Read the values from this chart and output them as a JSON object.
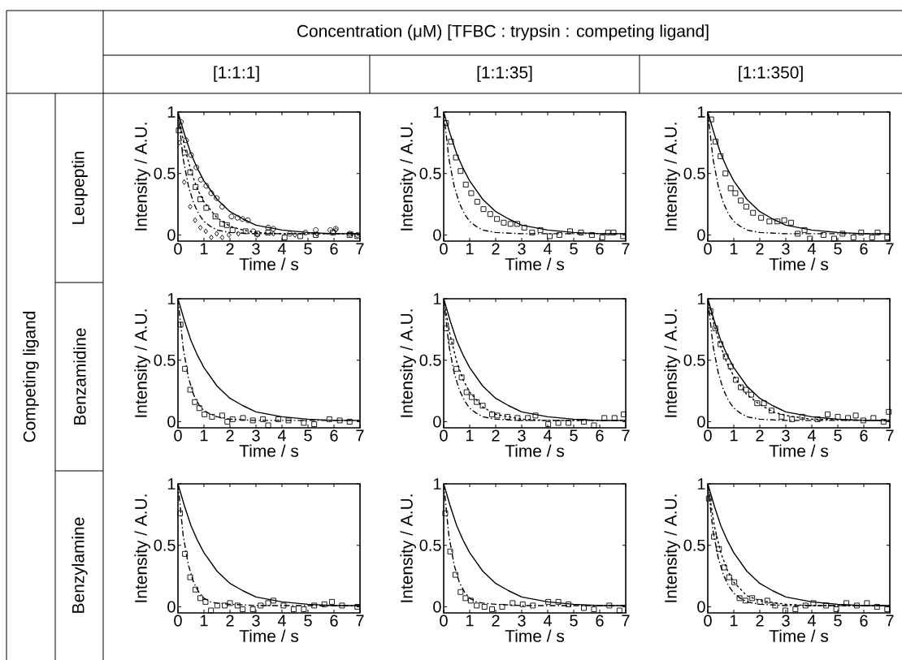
{
  "chart_data": [
    {
      "type": "other",
      "title": "Concentration (μM) [TFBC : trypsin : competing ligand]",
      "categories": [
        "[1:1:1]",
        "[1:1:35]",
        "[1:1:350]"
      ],
      "ylabel": "Competing ligand",
      "y_categories": [
        "Leupeptin",
        "Benzamidine",
        "Benzylamine"
      ]
    },
    {
      "type": "scatter",
      "xlabel": "Time / s",
      "ylabel": "Intensity / A.U.",
      "xlim": [
        0,
        7
      ],
      "ylim": [
        -0.05,
        1
      ],
      "xticks": [
        0,
        1,
        2,
        3,
        4,
        5,
        6,
        7
      ],
      "yticks": [
        0,
        0.5,
        1
      ],
      "series": [
        {
          "type": "line",
          "line_style": "solid",
          "color": "#000000",
          "x": [
            0,
            0.25,
            0.5,
            0.75,
            1,
            1.5,
            2,
            2.5,
            3,
            3.5,
            4,
            5,
            6,
            7
          ],
          "values": [
            1,
            0.82,
            0.66,
            0.54,
            0.44,
            0.29,
            0.19,
            0.13,
            0.08,
            0.06,
            0.04,
            0.02,
            0.01,
            0.01
          ]
        },
        {
          "type": "line",
          "line_style": "dashed",
          "color": "#000000",
          "x": [
            0,
            0.25,
            0.5,
            0.75,
            1,
            1.5,
            2,
            2.5,
            3,
            4,
            6.9
          ],
          "values": [
            1,
            0.72,
            0.52,
            0.37,
            0.27,
            0.14,
            0.07,
            0.04,
            0.02,
            0.01,
            0.01
          ]
        },
        {
          "type": "line",
          "line_style": "dashdot",
          "color": "#000000",
          "x": [
            0,
            0.2,
            0.4,
            0.6,
            0.8,
            1,
            1.25,
            1.5,
            2,
            3,
            7
          ],
          "values": [
            1,
            0.62,
            0.4,
            0.26,
            0.17,
            0.11,
            0.07,
            0.04,
            0.02,
            0.01,
            0.01
          ]
        },
        {
          "type": "scatter",
          "marker": "circle",
          "color": "#000000",
          "x": [
            0.11,
            0.31,
            0.5,
            0.71,
            0.88,
            1.09,
            1.28,
            1.49,
            1.7,
            2.06,
            2.29,
            2.48,
            2.69,
            2.9,
            3.47,
            3.67,
            4.3,
            4.9,
            5.3,
            5.86,
            6.07,
            6.6,
            6.9
          ],
          "values": [
            0.92,
            0.77,
            0.65,
            0.55,
            0.45,
            0.4,
            0.34,
            0.3,
            0.23,
            0.15,
            0.14,
            0.13,
            0.12,
            0.03,
            0.06,
            0.05,
            0.01,
            0.02,
            0.04,
            0.04,
            0.05,
            0.01,
            0
          ]
        },
        {
          "type": "scatter",
          "marker": "square",
          "color": "#000000",
          "x": [
            0.03,
            0.26,
            0.47,
            0.68,
            0.86,
            1.09,
            1.44,
            1.7,
            1.88,
            2.1,
            2.6,
            3.05,
            3.47,
            4.1,
            4.7,
            5.3,
            5.96,
            6.6,
            6.9
          ],
          "values": [
            0.85,
            0.67,
            0.51,
            0.39,
            0.29,
            0.22,
            0.15,
            0.09,
            0.08,
            0.04,
            0.03,
            0.01,
            0.02,
            -0.02,
            -0.01,
            0,
            0.02,
            0,
            -0.01
          ]
        },
        {
          "type": "scatter",
          "marker": "diamond",
          "color": "#000000",
          "x": [
            0.05,
            0.24,
            0.47,
            0.66,
            0.86,
            1.07,
            1.28,
            1.49,
            1.7,
            1.96,
            2.32,
            3.05,
            3.67,
            4.5,
            5.34,
            6.07,
            6.7
          ],
          "values": [
            0.75,
            0.43,
            0.23,
            0.12,
            0.06,
            0.03,
            -0.02,
            0.01,
            -0.02,
            0,
            0.01,
            0,
            0.01,
            0,
            0.01,
            0.04,
            0.01
          ]
        }
      ]
    },
    {
      "type": "scatter",
      "xlabel": "Time / s",
      "ylabel": "Intensity / A.U.",
      "xlim": [
        0,
        7
      ],
      "ylim": [
        -0.05,
        1
      ],
      "xticks": [
        0,
        1,
        2,
        3,
        4,
        5,
        6,
        7
      ],
      "yticks": [
        0,
        0.5,
        1
      ],
      "series": [
        {
          "type": "line",
          "line_style": "solid",
          "color": "#000000",
          "x": [
            0,
            0.25,
            0.5,
            0.75,
            1,
            1.5,
            2,
            2.5,
            3,
            3.5,
            4,
            5,
            6,
            7
          ],
          "values": [
            1,
            0.82,
            0.66,
            0.54,
            0.44,
            0.29,
            0.19,
            0.13,
            0.08,
            0.06,
            0.04,
            0.02,
            0.01,
            0.01
          ]
        },
        {
          "type": "line",
          "line_style": "dashdot",
          "color": "#000000",
          "x": [
            0,
            0.2,
            0.4,
            0.6,
            0.8,
            1,
            1.25,
            1.5,
            2,
            3,
            7
          ],
          "values": [
            1,
            0.62,
            0.4,
            0.26,
            0.17,
            0.11,
            0.07,
            0.04,
            0.02,
            0.01,
            0.01
          ]
        },
        {
          "type": "scatter",
          "marker": "square",
          "color": "#000000",
          "x": [
            0.09,
            0.28,
            0.47,
            0.65,
            0.85,
            1.06,
            1.29,
            1.53,
            1.79,
            2.05,
            2.31,
            2.57,
            2.83,
            3.1,
            3.4,
            3.72,
            4.08,
            4.45,
            4.86,
            5.28,
            5.7,
            6.1,
            6.32,
            6.53,
            6.9
          ],
          "values": [
            0.91,
            0.76,
            0.63,
            0.52,
            0.41,
            0.34,
            0.27,
            0.21,
            0.17,
            0.13,
            0.1,
            0.09,
            0.09,
            0.06,
            0.02,
            0.04,
            -0.01,
            0,
            0.03,
            0.02,
            0,
            -0.02,
            0.02,
            0.02,
            -0.01
          ]
        }
      ]
    },
    {
      "type": "scatter",
      "xlabel": "Time / s",
      "ylabel": "Intensity / A.U.",
      "xlim": [
        0,
        7
      ],
      "ylim": [
        -0.05,
        1
      ],
      "xticks": [
        0,
        1,
        2,
        3,
        4,
        5,
        6,
        7
      ],
      "yticks": [
        0,
        0.5,
        1
      ],
      "series": [
        {
          "type": "line",
          "line_style": "solid",
          "color": "#000000",
          "x": [
            0,
            0.25,
            0.5,
            0.75,
            1,
            1.5,
            2,
            2.5,
            3,
            3.5,
            4,
            5,
            6,
            7
          ],
          "values": [
            1,
            0.82,
            0.66,
            0.54,
            0.44,
            0.29,
            0.19,
            0.13,
            0.08,
            0.06,
            0.04,
            0.02,
            0.01,
            0.01
          ]
        },
        {
          "type": "line",
          "line_style": "dashdot",
          "color": "#000000",
          "x": [
            0,
            0.2,
            0.4,
            0.6,
            0.8,
            1,
            1.25,
            1.5,
            2,
            3,
            7
          ],
          "values": [
            1,
            0.62,
            0.4,
            0.26,
            0.17,
            0.11,
            0.07,
            0.04,
            0.02,
            0.01,
            0.01
          ]
        },
        {
          "type": "scatter",
          "marker": "square",
          "color": "#000000",
          "x": [
            0.13,
            0.3,
            0.49,
            0.68,
            0.88,
            1.06,
            1.27,
            1.48,
            1.74,
            2.05,
            2.37,
            2.68,
            2.94,
            3.2,
            3.46,
            3.72,
            3.93,
            4.45,
            4.86,
            5.18,
            5.6,
            5.9,
            6.32,
            6.53,
            6.9
          ],
          "values": [
            0.94,
            0.76,
            0.64,
            0.5,
            0.38,
            0.34,
            0.28,
            0.23,
            0.18,
            0.14,
            0.11,
            0.11,
            0.12,
            0.1,
            0.01,
            0.04,
            -0.03,
            0,
            -0.03,
            0.01,
            -0.02,
            0.02,
            -0.02,
            0.02,
            -0.02
          ]
        }
      ]
    },
    {
      "type": "scatter",
      "xlabel": "Time / s",
      "ylabel": "Intensity / A.U.",
      "xlim": [
        0,
        7
      ],
      "ylim": [
        -0.05,
        1
      ],
      "xticks": [
        0,
        1,
        2,
        3,
        4,
        5,
        6,
        7
      ],
      "yticks": [
        0,
        0.5,
        1
      ],
      "series": [
        {
          "type": "line",
          "line_style": "solid",
          "color": "#000000",
          "x": [
            0,
            0.25,
            0.5,
            0.75,
            1,
            1.5,
            2,
            2.5,
            3,
            3.5,
            4,
            5,
            6,
            7
          ],
          "values": [
            1,
            0.82,
            0.66,
            0.54,
            0.44,
            0.29,
            0.19,
            0.13,
            0.08,
            0.06,
            0.04,
            0.02,
            0.01,
            0.01
          ]
        },
        {
          "type": "line",
          "line_style": "dashdot",
          "color": "#000000",
          "x": [
            0,
            0.2,
            0.4,
            0.6,
            0.8,
            1,
            1.25,
            1.5,
            2,
            3,
            7
          ],
          "values": [
            1,
            0.6,
            0.36,
            0.22,
            0.14,
            0.09,
            0.06,
            0.04,
            0.02,
            0.01,
            0.01
          ]
        },
        {
          "type": "scatter",
          "marker": "square",
          "color": "#000000",
          "x": [
            0.1,
            0.27,
            0.47,
            0.65,
            0.82,
            1.02,
            1.31,
            1.7,
            1.9,
            2.1,
            2.5,
            2.88,
            3.27,
            3.47,
            3.86,
            4.25,
            4.84,
            5.24,
            5.82,
            6.22,
            6.6
          ],
          "values": [
            0.79,
            0.43,
            0.26,
            0.16,
            0.11,
            0.06,
            0.04,
            0.05,
            0,
            0.02,
            0.03,
            0.01,
            0.02,
            -0.03,
            0.02,
            0.01,
            -0.01,
            -0.02,
            0.02,
            0.01,
            0
          ]
        }
      ]
    },
    {
      "type": "scatter",
      "xlabel": "Time / s",
      "ylabel": "Intensity / A.U.",
      "xlim": [
        0,
        7
      ],
      "ylim": [
        -0.05,
        1
      ],
      "xticks": [
        0,
        1,
        2,
        3,
        4,
        5,
        6,
        7
      ],
      "yticks": [
        0,
        0.5,
        1
      ],
      "series": [
        {
          "type": "line",
          "line_style": "solid",
          "color": "#000000",
          "x": [
            0,
            0.25,
            0.5,
            0.75,
            1,
            1.5,
            2,
            2.5,
            3,
            3.5,
            4,
            5,
            6,
            7
          ],
          "values": [
            1,
            0.82,
            0.66,
            0.54,
            0.44,
            0.29,
            0.19,
            0.13,
            0.08,
            0.06,
            0.04,
            0.02,
            0.01,
            0.01
          ]
        },
        {
          "type": "line",
          "line_style": "dashed",
          "color": "#000000",
          "x": [
            0,
            0.25,
            0.5,
            0.75,
            1,
            1.5,
            2,
            2.5,
            3,
            4,
            6.9
          ],
          "values": [
            1,
            0.7,
            0.49,
            0.34,
            0.24,
            0.12,
            0.06,
            0.04,
            0.02,
            0.01,
            0.01
          ]
        },
        {
          "type": "line",
          "line_style": "dashdot",
          "color": "#000000",
          "x": [
            0,
            0.2,
            0.4,
            0.6,
            0.8,
            1,
            1.25,
            1.5,
            2,
            3,
            7
          ],
          "values": [
            1,
            0.62,
            0.4,
            0.26,
            0.17,
            0.11,
            0.07,
            0.04,
            0.02,
            0.01,
            0.01
          ]
        },
        {
          "type": "scatter",
          "marker": "square",
          "color": "#000000",
          "x": [
            0.1,
            0.29,
            0.49,
            0.69,
            0.88,
            1.08,
            1.27,
            1.5,
            1.86,
            2.06,
            2.45,
            2.84,
            3.24,
            3.53,
            4.02,
            4.41,
            4.8,
            5.39,
            5.78,
            6.18,
            6.57,
            6.92
          ],
          "values": [
            0.76,
            0.65,
            0.43,
            0.36,
            0.24,
            0.2,
            0.16,
            0.13,
            0.06,
            0.05,
            0.04,
            0.03,
            0.03,
            0.05,
            -0.02,
            -0.01,
            -0.01,
            0,
            -0.03,
            0.03,
            0.03,
            0.06
          ]
        }
      ]
    },
    {
      "type": "scatter",
      "xlabel": "Time / s",
      "ylabel": "Intensity / A.U.",
      "xlim": [
        0,
        7
      ],
      "ylim": [
        -0.05,
        1
      ],
      "xticks": [
        0,
        1,
        2,
        3,
        4,
        5,
        6,
        7
      ],
      "yticks": [
        0,
        0.5,
        1
      ],
      "series": [
        {
          "type": "line",
          "line_style": "solid",
          "color": "#000000",
          "x": [
            0,
            0.25,
            0.5,
            0.75,
            1,
            1.5,
            2,
            2.5,
            3,
            3.5,
            4,
            5,
            6,
            7
          ],
          "values": [
            1,
            0.82,
            0.66,
            0.54,
            0.44,
            0.29,
            0.19,
            0.13,
            0.08,
            0.06,
            0.04,
            0.02,
            0.01,
            0.01
          ]
        },
        {
          "type": "line",
          "line_style": "dashed",
          "color": "#000000",
          "x": [
            0,
            0.25,
            0.5,
            0.75,
            1,
            1.5,
            2,
            2.5,
            3,
            4,
            6.9
          ],
          "values": [
            1,
            0.78,
            0.61,
            0.47,
            0.37,
            0.22,
            0.14,
            0.08,
            0.05,
            0.02,
            0.01
          ]
        },
        {
          "type": "line",
          "line_style": "dashdot",
          "color": "#000000",
          "x": [
            0,
            0.2,
            0.4,
            0.6,
            0.8,
            1,
            1.25,
            1.5,
            2,
            3,
            7
          ],
          "values": [
            1,
            0.62,
            0.4,
            0.26,
            0.17,
            0.11,
            0.07,
            0.04,
            0.02,
            0.01,
            0.01
          ]
        },
        {
          "type": "scatter",
          "marker": "square",
          "color": "#000000",
          "x": [
            0.1,
            0.29,
            0.49,
            0.69,
            0.88,
            1.08,
            1.27,
            1.47,
            1.67,
            1.9,
            2.16,
            2.45,
            2.84,
            3.24,
            3.63,
            4.22,
            4.61,
            5.0,
            5.39,
            5.69,
            5.98,
            6.37,
            6.76,
            6.96
          ],
          "values": [
            0.9,
            0.76,
            0.63,
            0.53,
            0.45,
            0.34,
            0.28,
            0.26,
            0.22,
            0.15,
            0.15,
            0.09,
            0.04,
            0.02,
            0.04,
            0.02,
            0.06,
            0.04,
            0.03,
            0.05,
            0.01,
            0.03,
            0,
            0.08
          ]
        }
      ]
    },
    {
      "type": "scatter",
      "xlabel": "Time / s",
      "ylabel": "Intensity / A.U.",
      "xlim": [
        0,
        7
      ],
      "ylim": [
        -0.05,
        1
      ],
      "xticks": [
        0,
        1,
        2,
        3,
        4,
        5,
        6,
        7
      ],
      "yticks": [
        0,
        0.5,
        1
      ],
      "series": [
        {
          "type": "line",
          "line_style": "solid",
          "color": "#000000",
          "x": [
            0,
            0.25,
            0.5,
            0.75,
            1,
            1.5,
            2,
            2.5,
            3,
            3.5,
            4,
            5,
            6,
            7
          ],
          "values": [
            1,
            0.82,
            0.66,
            0.54,
            0.44,
            0.29,
            0.19,
            0.13,
            0.08,
            0.06,
            0.04,
            0.02,
            0.01,
            0.01
          ]
        },
        {
          "type": "line",
          "line_style": "dashdot",
          "color": "#000000",
          "x": [
            0,
            0.2,
            0.4,
            0.6,
            0.8,
            1,
            1.25,
            1.5,
            2,
            3,
            7
          ],
          "values": [
            1,
            0.58,
            0.34,
            0.2,
            0.12,
            0.07,
            0.04,
            0.03,
            0.02,
            0.01,
            0.01
          ]
        },
        {
          "type": "scatter",
          "marker": "square",
          "color": "#000000",
          "x": [
            0.08,
            0.27,
            0.47,
            0.67,
            0.86,
            1.06,
            1.27,
            1.51,
            1.8,
            2.0,
            2.29,
            2.49,
            2.88,
            3.18,
            3.47,
            3.67,
            4.06,
            4.45,
            4.84,
            5.24,
            5.63,
            5.92,
            6.31,
            6.9
          ],
          "values": [
            0.76,
            0.43,
            0.24,
            0.14,
            0.07,
            0.04,
            -0.03,
            0.01,
            0.01,
            0.03,
            0.01,
            -0.02,
            -0.02,
            0.01,
            0.03,
            0.05,
            0.01,
            -0.02,
            -0.02,
            0.01,
            0.02,
            0.04,
            0.01,
            0
          ]
        }
      ]
    },
    {
      "type": "scatter",
      "xlabel": "Time / s",
      "ylabel": "Intensity / A.U.",
      "xlim": [
        0,
        7
      ],
      "ylim": [
        -0.05,
        1
      ],
      "xticks": [
        0,
        1,
        2,
        3,
        4,
        5,
        6,
        7
      ],
      "yticks": [
        0,
        0.5,
        1
      ],
      "series": [
        {
          "type": "line",
          "line_style": "solid",
          "color": "#000000",
          "x": [
            0,
            0.25,
            0.5,
            0.75,
            1,
            1.5,
            2,
            2.5,
            3,
            3.5,
            4,
            5,
            6,
            7
          ],
          "values": [
            1,
            0.82,
            0.66,
            0.54,
            0.44,
            0.29,
            0.19,
            0.13,
            0.08,
            0.06,
            0.04,
            0.02,
            0.01,
            0.01
          ]
        },
        {
          "type": "line",
          "line_style": "dashdot",
          "color": "#000000",
          "x": [
            0,
            0.2,
            0.4,
            0.6,
            0.8,
            1,
            1.25,
            1.5,
            2,
            3,
            7
          ],
          "values": [
            1,
            0.58,
            0.34,
            0.2,
            0.12,
            0.07,
            0.04,
            0.03,
            0.02,
            0.01,
            0.01
          ]
        },
        {
          "type": "scatter",
          "marker": "square",
          "color": "#000000",
          "x": [
            0.06,
            0.25,
            0.45,
            0.65,
            0.84,
            1.04,
            1.27,
            1.57,
            1.86,
            2.25,
            2.65,
            3.04,
            3.43,
            4.02,
            4.41,
            4.8,
            5.39,
            5.78,
            6.37,
            6.76
          ],
          "values": [
            0.76,
            0.45,
            0.26,
            0.12,
            0.07,
            0.05,
            0.01,
            0,
            -0.02,
            0,
            0.03,
            0.02,
            0.01,
            0.04,
            0.04,
            0.02,
            -0.01,
            -0.02,
            0.01,
            -0.03
          ]
        }
      ]
    },
    {
      "type": "scatter",
      "xlabel": "Time / s",
      "ylabel": "Intensity / A.U.",
      "xlim": [
        0,
        7
      ],
      "ylim": [
        -0.05,
        1
      ],
      "xticks": [
        0,
        1,
        2,
        3,
        4,
        5,
        6,
        7
      ],
      "yticks": [
        0,
        0.5,
        1
      ],
      "series": [
        {
          "type": "line",
          "line_style": "solid",
          "color": "#000000",
          "x": [
            0,
            0.25,
            0.5,
            0.75,
            1,
            1.5,
            2,
            2.5,
            3,
            3.5,
            4,
            5,
            6,
            7
          ],
          "values": [
            1,
            0.82,
            0.66,
            0.54,
            0.44,
            0.29,
            0.19,
            0.13,
            0.08,
            0.06,
            0.04,
            0.02,
            0.01,
            0.01
          ]
        },
        {
          "type": "line",
          "line_style": "dashed",
          "color": "#000000",
          "x": [
            0,
            0.25,
            0.5,
            0.75,
            1,
            1.5,
            2,
            3,
            4,
            6.9
          ],
          "values": [
            1,
            0.66,
            0.44,
            0.3,
            0.2,
            0.09,
            0.05,
            0.02,
            0.01,
            0.01
          ]
        },
        {
          "type": "line",
          "line_style": "dashdot",
          "color": "#000000",
          "x": [
            0,
            0.2,
            0.4,
            0.6,
            0.8,
            1,
            1.25,
            1.5,
            2,
            3,
            7
          ],
          "values": [
            1,
            0.62,
            0.4,
            0.26,
            0.17,
            0.11,
            0.07,
            0.04,
            0.02,
            0.01,
            0.01
          ]
        },
        {
          "type": "scatter",
          "marker": "square",
          "color": "#000000",
          "x": [
            0.04,
            0.24,
            0.43,
            0.63,
            0.82,
            1.02,
            1.22,
            1.45,
            1.71,
            2.0,
            2.29,
            2.59,
            2.98,
            3.37,
            3.76,
            4.06,
            4.55,
            4.94,
            5.33,
            5.73,
            6.12,
            6.51,
            6.9
          ],
          "values": [
            0.88,
            0.57,
            0.47,
            0.32,
            0.24,
            0.2,
            0.07,
            0.05,
            0.07,
            0.04,
            0.05,
            0.01,
            -0.03,
            -0.02,
            0.01,
            0.03,
            0.01,
            -0.02,
            0.03,
            0.01,
            0.03,
            0,
            -0.02
          ]
        }
      ]
    }
  ]
}
